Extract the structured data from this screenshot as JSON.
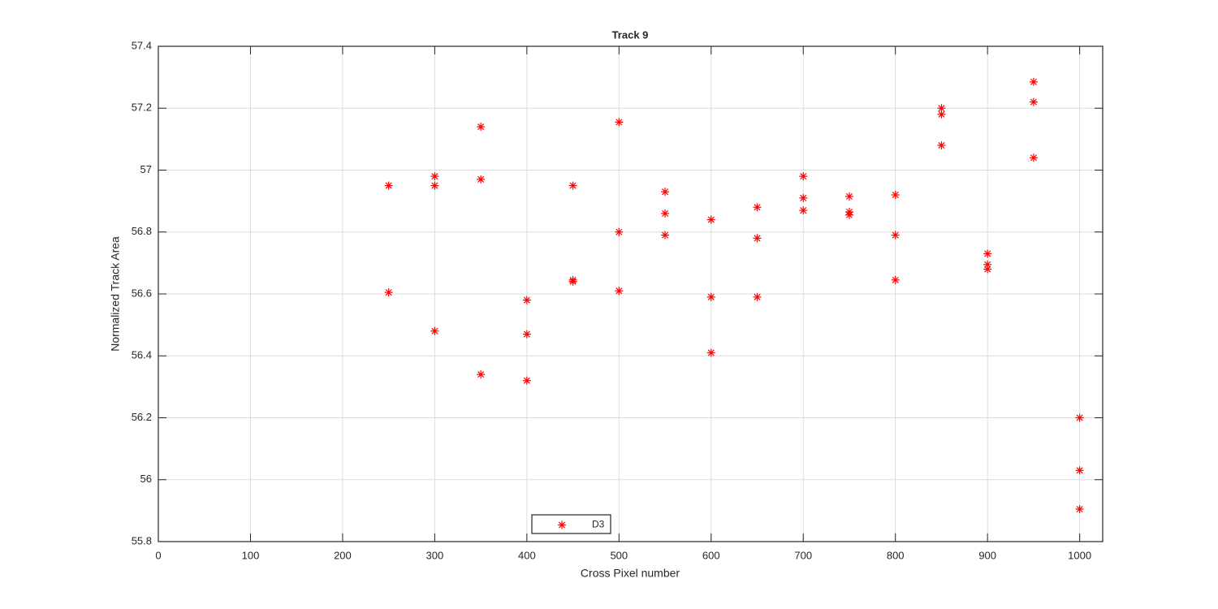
{
  "chart_data": {
    "type": "scatter",
    "title": "Track 9",
    "xlabel": "Cross Pixel number",
    "ylabel": "Normalized Track Area",
    "xlim": [
      0,
      1025
    ],
    "ylim": [
      55.8,
      57.4
    ],
    "xticks": [
      0,
      100,
      200,
      300,
      400,
      500,
      600,
      700,
      800,
      900,
      1000
    ],
    "yticks": [
      55.8,
      56,
      56.2,
      56.4,
      56.6,
      56.8,
      57,
      57.2,
      57.4
    ],
    "grid": true,
    "series": [
      {
        "name": "D3",
        "color": "#ff0000",
        "marker": "*",
        "x": [
          250,
          250,
          300,
          300,
          300,
          350,
          350,
          350,
          400,
          400,
          400,
          450,
          450,
          450,
          500,
          500,
          500,
          550,
          550,
          550,
          600,
          600,
          600,
          650,
          650,
          650,
          700,
          700,
          700,
          750,
          750,
          750,
          800,
          800,
          800,
          850,
          850,
          850,
          900,
          900,
          900,
          950,
          950,
          950,
          1000,
          1000,
          1000
        ],
        "values": [
          56.95,
          56.605,
          56.98,
          56.95,
          56.48,
          57.14,
          56.97,
          56.34,
          56.58,
          56.47,
          56.32,
          56.95,
          56.645,
          56.64,
          57.155,
          56.8,
          56.61,
          56.93,
          56.86,
          56.79,
          56.84,
          56.59,
          56.41,
          56.88,
          56.78,
          56.59,
          56.98,
          56.91,
          56.87,
          56.915,
          56.865,
          56.855,
          56.92,
          56.79,
          56.645,
          57.2,
          57.18,
          57.08,
          56.73,
          56.695,
          56.68,
          57.285,
          57.22,
          57.04,
          56.2,
          56.03,
          55.905
        ]
      }
    ]
  }
}
